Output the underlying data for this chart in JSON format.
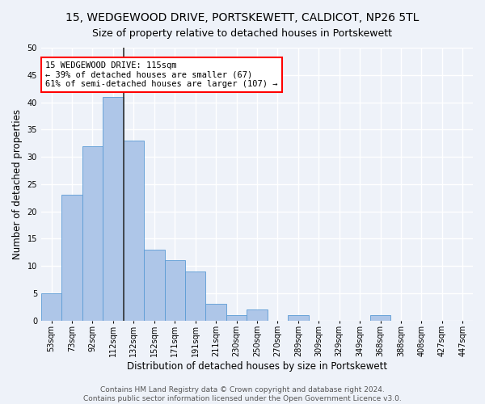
{
  "title": "15, WEDGEWOOD DRIVE, PORTSKEWETT, CALDICOT, NP26 5TL",
  "subtitle": "Size of property relative to detached houses in Portskewett",
  "xlabel": "Distribution of detached houses by size in Portskewett",
  "ylabel": "Number of detached properties",
  "bar_values": [
    5,
    23,
    32,
    41,
    33,
    13,
    11,
    9,
    3,
    1,
    2,
    0,
    1,
    0,
    0,
    0,
    1,
    0,
    0,
    0,
    0
  ],
  "bin_labels": [
    "53sqm",
    "73sqm",
    "92sqm",
    "112sqm",
    "132sqm",
    "152sqm",
    "171sqm",
    "191sqm",
    "211sqm",
    "230sqm",
    "250sqm",
    "270sqm",
    "289sqm",
    "309sqm",
    "329sqm",
    "349sqm",
    "368sqm",
    "388sqm",
    "408sqm",
    "427sqm",
    "447sqm"
  ],
  "bar_color": "#aec6e8",
  "bar_edge_color": "#5b9bd5",
  "highlight_bin_index": 3,
  "highlight_line_color": "#333333",
  "annotation_text": "15 WEDGEWOOD DRIVE: 115sqm\n← 39% of detached houses are smaller (67)\n61% of semi-detached houses are larger (107) →",
  "annotation_box_color": "white",
  "annotation_box_edge_color": "red",
  "ylim": [
    0,
    50
  ],
  "yticks": [
    0,
    5,
    10,
    15,
    20,
    25,
    30,
    35,
    40,
    45,
    50
  ],
  "footer_text": "Contains HM Land Registry data © Crown copyright and database right 2024.\nContains public sector information licensed under the Open Government Licence v3.0.",
  "background_color": "#eef2f9",
  "grid_color": "#ffffff",
  "title_fontsize": 10,
  "subtitle_fontsize": 9,
  "xlabel_fontsize": 8.5,
  "ylabel_fontsize": 8.5,
  "tick_fontsize": 7,
  "footer_fontsize": 6.5,
  "annotation_fontsize": 7.5
}
